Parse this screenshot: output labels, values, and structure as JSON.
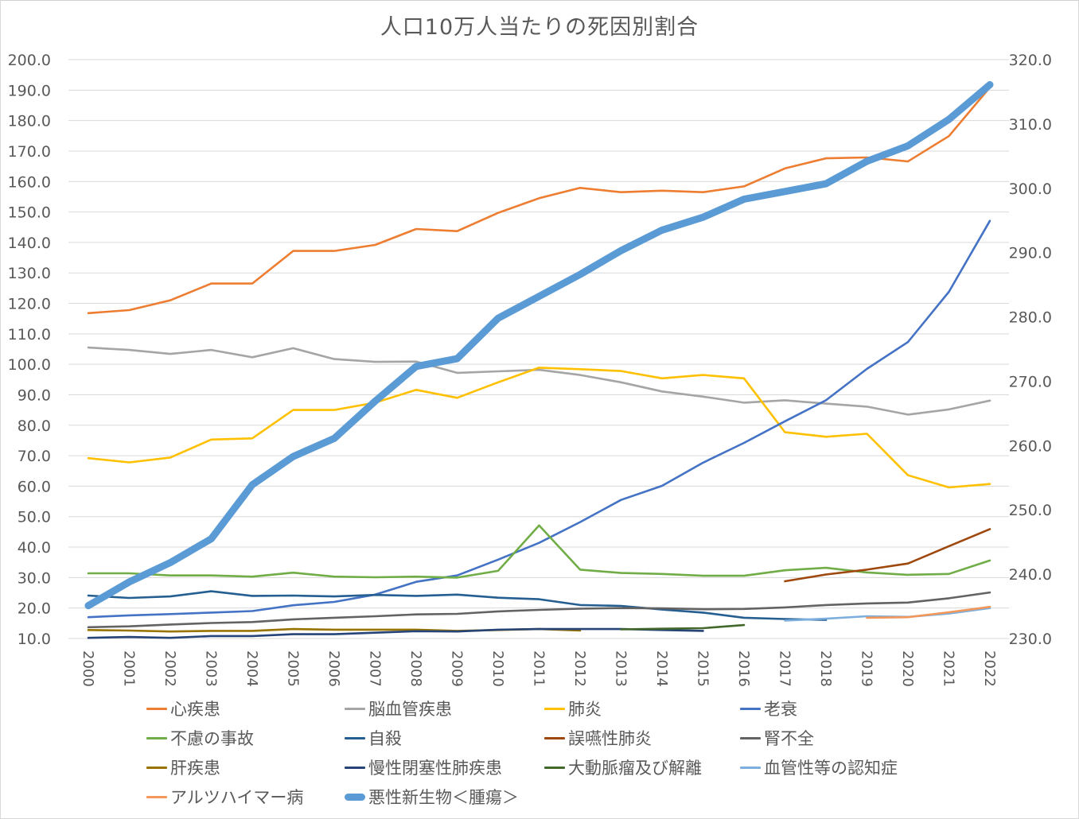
{
  "chart_data": {
    "type": "line",
    "title": "人口10万人当たりの死因別割合",
    "xlabel": "",
    "ylabel": "",
    "ylim": [
      10,
      200
    ],
    "y2lim": [
      230,
      320
    ],
    "grid": true,
    "legend_position": "bottom",
    "y_ticks": [
      "200.0",
      "190.0",
      "180.0",
      "170.0",
      "160.0",
      "150.0",
      "140.0",
      "130.0",
      "120.0",
      "110.0",
      "100.0",
      "90.0",
      "80.0",
      "70.0",
      "60.0",
      "50.0",
      "40.0",
      "30.0",
      "20.0",
      "10.0"
    ],
    "y2_ticks": [
      "320.0",
      "310.0",
      "300.0",
      "290.0",
      "280.0",
      "270.0",
      "260.0",
      "250.0",
      "240.0",
      "230.0"
    ],
    "x": [
      "2000",
      "2001",
      "2002",
      "2003",
      "2004",
      "2005",
      "2006",
      "2007",
      "2008",
      "2009",
      "2010",
      "2011",
      "2012",
      "2013",
      "2014",
      "2015",
      "2016",
      "2017",
      "2018",
      "2019",
      "2020",
      "2021",
      "2022"
    ],
    "series": [
      {
        "name": "心疾患",
        "color": "#ED7D31",
        "axis": "left",
        "width": "normal",
        "values": [
          116.8,
          117.8,
          121.0,
          126.5,
          126.5,
          137.2,
          137.2,
          139.2,
          144.4,
          143.7,
          149.7,
          154.5,
          157.9,
          156.5,
          157.0,
          156.5,
          158.4,
          164.3,
          167.6,
          167.9,
          166.6,
          174.9,
          190.9
        ]
      },
      {
        "name": "脳血管疾患",
        "color": "#A5A5A5",
        "axis": "left",
        "width": "normal",
        "values": [
          105.5,
          104.7,
          103.4,
          104.7,
          102.3,
          105.3,
          101.7,
          100.8,
          100.9,
          97.2,
          97.7,
          98.2,
          96.5,
          94.1,
          91.1,
          89.4,
          87.4,
          88.2,
          87.1,
          86.1,
          83.5,
          85.2,
          88.1
        ]
      },
      {
        "name": "肺炎",
        "color": "#FFC000",
        "axis": "left",
        "width": "normal",
        "values": [
          69.2,
          67.8,
          69.4,
          75.3,
          75.7,
          85.0,
          85.0,
          87.4,
          91.6,
          89.0,
          94.1,
          98.9,
          98.4,
          97.8,
          95.4,
          96.5,
          95.4,
          77.7,
          76.2,
          77.2,
          63.6,
          59.6,
          60.7
        ]
      },
      {
        "name": "老衰",
        "color": "#4472C4",
        "axis": "left",
        "width": "normal",
        "values": [
          17.0,
          17.6,
          18.0,
          18.5,
          19.0,
          20.9,
          22.0,
          24.4,
          28.6,
          30.7,
          35.9,
          41.4,
          48.2,
          55.5,
          60.1,
          67.7,
          74.2,
          81.3,
          88.2,
          98.5,
          107.3,
          123.8,
          147.1
        ]
      },
      {
        "name": "不慮の事故",
        "color": "#70AD47",
        "axis": "left",
        "width": "normal",
        "values": [
          31.4,
          31.4,
          30.7,
          30.7,
          30.3,
          31.6,
          30.3,
          30.1,
          30.3,
          30.0,
          32.2,
          47.1,
          32.6,
          31.5,
          31.2,
          30.6,
          30.6,
          32.4,
          33.2,
          31.7,
          30.9,
          31.2,
          35.6
        ]
      },
      {
        "name": "自殺",
        "color": "#255E91",
        "axis": "left",
        "width": "normal",
        "values": [
          24.1,
          23.3,
          23.8,
          25.5,
          24.0,
          24.1,
          23.8,
          24.3,
          24.0,
          24.4,
          23.4,
          22.9,
          21.0,
          20.7,
          19.5,
          18.5,
          16.8,
          16.4,
          16.1,
          null,
          null,
          null,
          null
        ]
      },
      {
        "name": "誤嚥性肺炎",
        "color": "#9E480E",
        "axis": "left",
        "width": "normal",
        "values": [
          null,
          null,
          null,
          null,
          null,
          null,
          null,
          null,
          null,
          null,
          null,
          null,
          null,
          null,
          null,
          null,
          null,
          28.8,
          31.0,
          32.6,
          34.6,
          40.3,
          45.9
        ]
      },
      {
        "name": "腎不全",
        "color": "#636363",
        "axis": "left",
        "width": "normal",
        "values": [
          13.7,
          14.0,
          14.6,
          15.1,
          15.4,
          16.3,
          16.8,
          17.3,
          17.9,
          18.1,
          18.9,
          19.4,
          19.8,
          20.0,
          19.9,
          19.6,
          19.7,
          20.2,
          21.0,
          21.5,
          21.8,
          23.2,
          25.1
        ]
      },
      {
        "name": "肝疾患",
        "color": "#997300",
        "axis": "left",
        "width": "normal",
        "values": [
          12.8,
          12.6,
          12.3,
          12.5,
          12.5,
          13.1,
          12.9,
          12.9,
          12.9,
          12.5,
          12.8,
          13.1,
          12.6,
          null,
          null,
          null,
          null,
          null,
          null,
          null,
          null,
          null,
          null
        ]
      },
      {
        "name": "慢性閉塞性肺疾患",
        "color": "#264478",
        "axis": "left",
        "width": "normal",
        "values": [
          10.2,
          10.5,
          10.2,
          10.8,
          10.8,
          11.4,
          11.4,
          11.9,
          12.4,
          12.3,
          12.9,
          13.1,
          13.1,
          13.1,
          12.8,
          12.5,
          null,
          null,
          null,
          null,
          null,
          null,
          null
        ]
      },
      {
        "name": "大動脈瘤及び解離",
        "color": "#43682B",
        "axis": "left",
        "width": "normal",
        "values": [
          null,
          null,
          null,
          null,
          null,
          null,
          null,
          null,
          null,
          null,
          null,
          null,
          null,
          13.0,
          13.2,
          13.4,
          14.4,
          null,
          null,
          null,
          null,
          null,
          null
        ]
      },
      {
        "name": "血管性等の認知症",
        "color": "#7CAFDD",
        "axis": "left",
        "width": "normal",
        "values": [
          null,
          null,
          null,
          null,
          null,
          null,
          null,
          null,
          null,
          null,
          null,
          null,
          null,
          null,
          null,
          null,
          null,
          15.9,
          16.5,
          17.3,
          17.1,
          18.2,
          20.0
        ]
      },
      {
        "name": "アルツハイマー病",
        "color": "#F4975A",
        "axis": "left",
        "width": "normal",
        "values": [
          null,
          null,
          null,
          null,
          null,
          null,
          null,
          null,
          null,
          null,
          null,
          null,
          null,
          null,
          null,
          null,
          null,
          null,
          null,
          16.8,
          17.0,
          18.6,
          20.4
        ]
      },
      {
        "name": "悪性新生物<腫瘍>",
        "color": "#5B9BD5",
        "axis": "right",
        "width": "thick",
        "values": [
          235.1,
          238.8,
          241.8,
          245.5,
          253.9,
          258.3,
          261.1,
          266.9,
          272.3,
          273.5,
          279.8,
          283.2,
          286.6,
          290.3,
          293.5,
          295.5,
          298.3,
          299.5,
          300.7,
          304.2,
          306.6,
          310.7,
          316.1
        ]
      }
    ],
    "legend_order": [
      0,
      1,
      2,
      3,
      4,
      5,
      6,
      7,
      8,
      9,
      10,
      11,
      12,
      13
    ]
  },
  "legend_labels": [
    "心疾患",
    "脳血管疾患",
    "肺炎",
    "老衰",
    "不慮の事故",
    "自殺",
    "誤嚥性肺炎",
    "腎不全",
    "肝疾患",
    "慢性閉塞性肺疾患",
    "大動脈瘤及び解離",
    "血管性等の認知症",
    "アルツハイマー病",
    "悪性新生物＜腫瘍＞"
  ]
}
